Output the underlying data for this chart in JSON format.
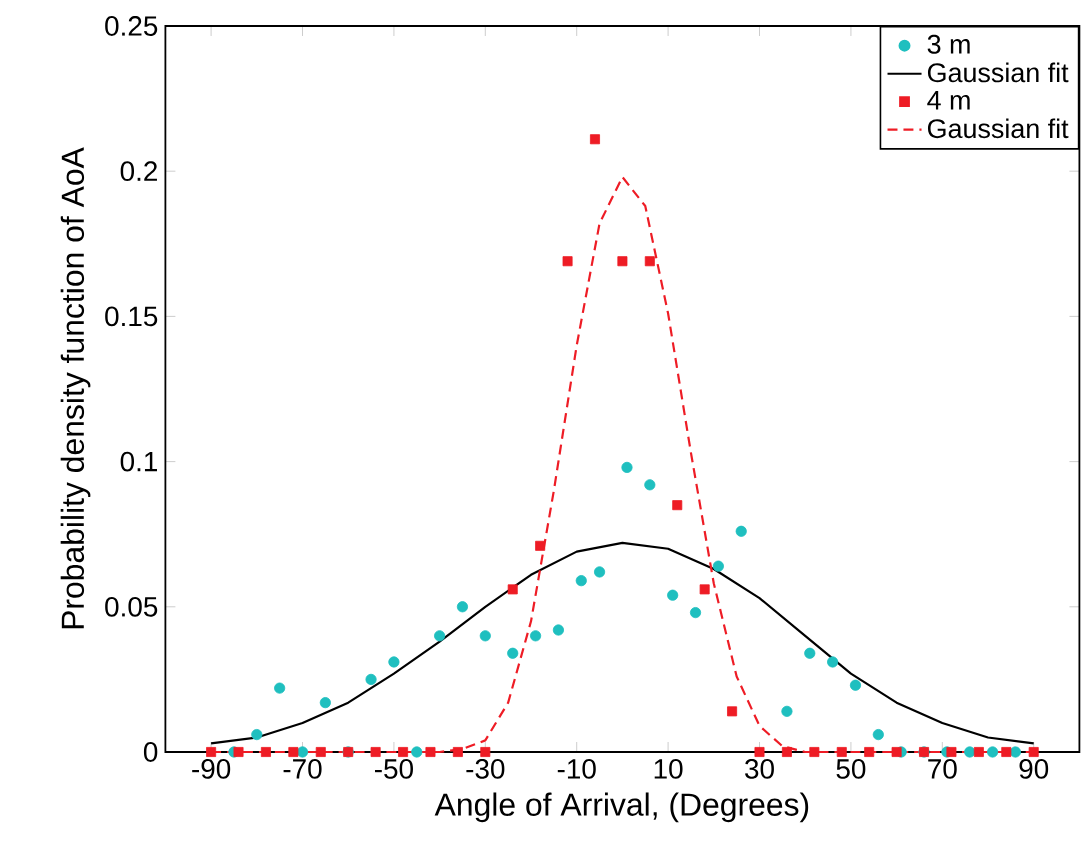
{
  "chart_data": {
    "type": "scatter",
    "xlabel": "Angle of Arrival, (Degrees)",
    "ylabel": "Probability density function of AoA",
    "xlim": [
      -100,
      100
    ],
    "xticks": [
      -90,
      -70,
      -50,
      -30,
      -10,
      10,
      30,
      50,
      70,
      90
    ],
    "ylim": [
      0,
      0.25
    ],
    "yticks": [
      0,
      0.05,
      0.1,
      0.15,
      0.2,
      0.25
    ],
    "legend": "top right",
    "grid": false,
    "series": [
      {
        "name": "3 m",
        "marker": "circle",
        "color": "#1fbfbf",
        "x": [
          -85,
          -80,
          -75,
          -70,
          -65,
          -60,
          -55,
          -50,
          -45,
          -40,
          -35,
          -30,
          -24,
          -19,
          -14,
          -9,
          -5,
          1,
          6,
          11,
          16,
          21,
          26,
          31,
          36,
          41,
          46,
          51,
          56,
          61,
          66,
          71,
          76,
          81,
          86
        ],
        "values": [
          0,
          0.006,
          0.022,
          0,
          0.017,
          0,
          0.025,
          0.031,
          0,
          0.04,
          0.05,
          0.04,
          0.034,
          0.04,
          0.042,
          0.059,
          0.062,
          0.098,
          0.092,
          0.054,
          0.048,
          0.064,
          0.076,
          null,
          0.014,
          0.034,
          0.031,
          0.023,
          0.006,
          0,
          0,
          0,
          0,
          0,
          0
        ]
      },
      {
        "name": "Gaussian fit",
        "type": "line",
        "marker": "none",
        "line_style": "solid",
        "color": "#000000",
        "x": [
          -90,
          -80,
          -70,
          -60,
          -50,
          -40,
          -30,
          -20,
          -10,
          0,
          10,
          20,
          30,
          40,
          50,
          60,
          70,
          80,
          90
        ],
        "values": [
          0.003,
          0.005,
          0.01,
          0.017,
          0.027,
          0.038,
          0.05,
          0.061,
          0.069,
          0.072,
          0.07,
          0.063,
          0.053,
          0.04,
          0.027,
          0.017,
          0.01,
          0.005,
          0.003
        ]
      },
      {
        "name": "4 m",
        "marker": "square",
        "color": "#ee1c25",
        "x": [
          -90,
          -84,
          -78,
          -72,
          -66,
          -60,
          -54,
          -48,
          -42,
          -36,
          -30,
          -24,
          -18,
          -12,
          -6,
          0,
          6,
          12,
          18,
          24,
          30,
          36,
          42,
          48,
          54,
          60,
          66,
          72,
          78,
          84,
          90
        ],
        "values": [
          0,
          0,
          0,
          0,
          0,
          0,
          0,
          0,
          0,
          0,
          0,
          0.056,
          0.071,
          0.169,
          0.211,
          0.169,
          0.169,
          0.085,
          0.056,
          0.014,
          0,
          0,
          0,
          0,
          0,
          0,
          0,
          0,
          0,
          0,
          0
        ]
      },
      {
        "name": "Gaussian fit",
        "type": "line",
        "marker": "none",
        "line_style": "dashed",
        "color": "#ee1c25",
        "x": [
          -90,
          -60,
          -40,
          -35,
          -30,
          -25,
          -20,
          -15,
          -10,
          -5,
          0,
          5,
          10,
          15,
          20,
          25,
          30,
          35,
          40,
          60,
          90
        ],
        "values": [
          0,
          0,
          0,
          0.001,
          0.004,
          0.017,
          0.045,
          0.09,
          0.14,
          0.182,
          0.198,
          0.188,
          0.151,
          0.103,
          0.058,
          0.026,
          0.009,
          0.002,
          0,
          0,
          0
        ]
      }
    ]
  }
}
